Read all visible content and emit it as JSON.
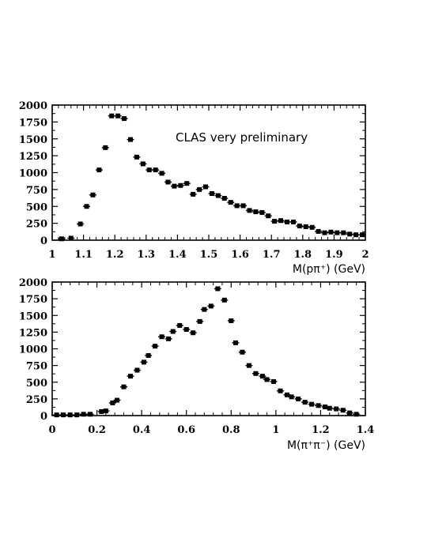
{
  "chart_data": [
    {
      "type": "scatter",
      "xlabel": "M(pπ⁺) (GeV)",
      "ylabel": "",
      "xlim": [
        1,
        2
      ],
      "ylim": [
        0,
        2000
      ],
      "xticks": [
        "1",
        "1.1",
        "1.2",
        "1.3",
        "1.4",
        "1.5",
        "1.6",
        "1.7",
        "1.8",
        "1.9",
        "2"
      ],
      "yticks": [
        "0",
        "250",
        "500",
        "750",
        "1000",
        "1250",
        "1500",
        "1750",
        "2000"
      ],
      "annotation": "CLAS very preliminary",
      "grid": false,
      "x": [
        1.03,
        1.06,
        1.09,
        1.11,
        1.13,
        1.15,
        1.17,
        1.19,
        1.21,
        1.23,
        1.25,
        1.27,
        1.29,
        1.31,
        1.33,
        1.35,
        1.37,
        1.39,
        1.41,
        1.43,
        1.45,
        1.47,
        1.49,
        1.51,
        1.53,
        1.55,
        1.57,
        1.59,
        1.61,
        1.63,
        1.65,
        1.67,
        1.69,
        1.71,
        1.73,
        1.75,
        1.77,
        1.79,
        1.81,
        1.83,
        1.85,
        1.87,
        1.89,
        1.91,
        1.93,
        1.95,
        1.97,
        1.99
      ],
      "y": [
        20,
        30,
        240,
        500,
        670,
        1040,
        1370,
        1840,
        1840,
        1800,
        1490,
        1230,
        1130,
        1040,
        1040,
        990,
        860,
        800,
        810,
        840,
        680,
        750,
        790,
        690,
        660,
        620,
        560,
        510,
        510,
        440,
        420,
        410,
        360,
        280,
        290,
        270,
        270,
        210,
        200,
        190,
        130,
        110,
        120,
        110,
        110,
        90,
        80,
        80
      ]
    },
    {
      "type": "scatter",
      "xlabel": "M(π⁺π⁻) (GeV)",
      "ylabel": "",
      "xlim": [
        0,
        1.4
      ],
      "ylim": [
        0,
        2000
      ],
      "xticks": [
        "0",
        "0.2",
        "0.4",
        "0.6",
        "0.8",
        "1",
        "1.2",
        "1.4"
      ],
      "yticks": [
        "0",
        "250",
        "500",
        "750",
        "1000",
        "1250",
        "1500",
        "1750",
        "2000"
      ],
      "grid": false,
      "x": [
        0.02,
        0.05,
        0.08,
        0.11,
        0.14,
        0.17,
        0.22,
        0.24,
        0.27,
        0.29,
        0.32,
        0.35,
        0.38,
        0.41,
        0.43,
        0.46,
        0.49,
        0.52,
        0.54,
        0.57,
        0.6,
        0.63,
        0.66,
        0.68,
        0.71,
        0.74,
        0.77,
        0.8,
        0.82,
        0.85,
        0.88,
        0.91,
        0.94,
        0.96,
        0.99,
        1.02,
        1.05,
        1.07,
        1.1,
        1.13,
        1.16,
        1.19,
        1.22,
        1.24,
        1.27,
        1.3,
        1.33,
        1.36
      ],
      "y": [
        10,
        10,
        10,
        10,
        20,
        20,
        60,
        70,
        190,
        230,
        430,
        590,
        680,
        800,
        900,
        1040,
        1180,
        1150,
        1260,
        1350,
        1290,
        1240,
        1410,
        1590,
        1640,
        1900,
        1730,
        1420,
        1090,
        950,
        750,
        630,
        590,
        540,
        510,
        370,
        310,
        280,
        250,
        200,
        170,
        150,
        130,
        110,
        100,
        80,
        40,
        20
      ]
    }
  ]
}
